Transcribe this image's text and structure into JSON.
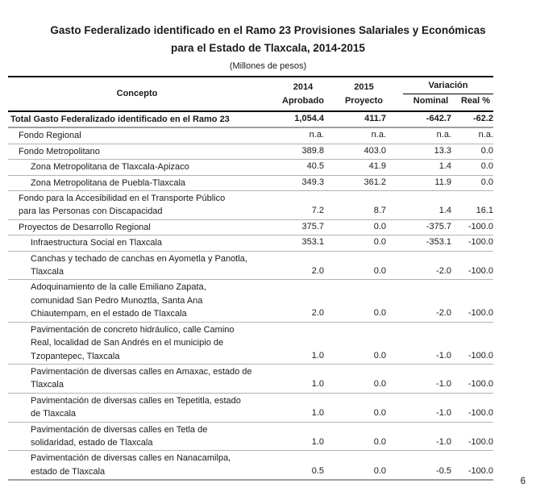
{
  "doc": {
    "title_line1": "Gasto Federalizado identificado en el Ramo 23 Provisiones Salariales y Económicas",
    "title_line2": "para el Estado de Tlaxcala, 2014-2015",
    "subtitle": "(Millones de pesos)",
    "page_number": "6"
  },
  "table": {
    "headers": {
      "concept": "Concepto",
      "y2014_line1": "2014",
      "y2014_line2": "Aprobado",
      "y2015_line1": "2015",
      "y2015_line2": "Proyecto",
      "variation": "Variación",
      "nominal": "Nominal",
      "real": "Real %"
    },
    "rows": [
      {
        "concept_lines": [
          "Total Gasto Federalizado identificado en el Ramo 23"
        ],
        "indent": 0,
        "bold": true,
        "total": true,
        "v2014": "1,054.4",
        "v2015": "411.7",
        "nominal": "-642.7",
        "real": "-62.2"
      },
      {
        "concept_lines": [
          "Fondo Regional"
        ],
        "indent": 1,
        "bold": false,
        "total": false,
        "v2014": "n.a.",
        "v2015": "n.a.",
        "nominal": "n.a.",
        "real": "n.a."
      },
      {
        "concept_lines": [
          "Fondo Metropolitano"
        ],
        "indent": 1,
        "bold": false,
        "total": false,
        "v2014": "389.8",
        "v2015": "403.0",
        "nominal": "13.3",
        "real": "0.0"
      },
      {
        "concept_lines": [
          "Zona Metropolitana de Tlaxcala-Apizaco"
        ],
        "indent": 2,
        "bold": false,
        "total": false,
        "v2014": "40.5",
        "v2015": "41.9",
        "nominal": "1.4",
        "real": "0.0"
      },
      {
        "concept_lines": [
          "Zona Metropolitana de Puebla-Tlaxcala"
        ],
        "indent": 2,
        "bold": false,
        "total": false,
        "v2014": "349.3",
        "v2015": "361.2",
        "nominal": "11.9",
        "real": "0.0"
      },
      {
        "concept_lines": [
          "Fondo para la Accesibilidad en el Transporte Público",
          "para las Personas con Discapacidad"
        ],
        "indent": 1,
        "bold": false,
        "total": false,
        "v2014": "7.2",
        "v2015": "8.7",
        "nominal": "1.4",
        "real": "16.1"
      },
      {
        "concept_lines": [
          "Proyectos de Desarrollo Regional"
        ],
        "indent": 1,
        "bold": false,
        "total": false,
        "v2014": "375.7",
        "v2015": "0.0",
        "nominal": "-375.7",
        "real": "-100.0"
      },
      {
        "concept_lines": [
          "Infraestructura Social en Tlaxcala"
        ],
        "indent": 2,
        "bold": false,
        "total": false,
        "v2014": "353.1",
        "v2015": "0.0",
        "nominal": "-353.1",
        "real": "-100.0"
      },
      {
        "concept_lines": [
          "Canchas y techado de canchas en Ayometla y Panotla,",
          "Tlaxcala"
        ],
        "indent": 2,
        "bold": false,
        "total": false,
        "v2014": "2.0",
        "v2015": "0.0",
        "nominal": "-2.0",
        "real": "-100.0"
      },
      {
        "concept_lines": [
          "Adoquinamiento de la calle Emiliano Zapata,",
          "comunidad San Pedro Munoztla, Santa Ana",
          "Chiautempam, en el estado de Tlaxcala"
        ],
        "indent": 2,
        "bold": false,
        "total": false,
        "v2014": "2.0",
        "v2015": "0.0",
        "nominal": "-2.0",
        "real": "-100.0"
      },
      {
        "concept_lines": [
          "Pavimentación de concreto hidráulico, calle Camino",
          "Real, localidad de San Andrés en el municipio de",
          "Tzopantepec, Tlaxcala"
        ],
        "indent": 2,
        "bold": false,
        "total": false,
        "v2014": "1.0",
        "v2015": "0.0",
        "nominal": "-1.0",
        "real": "-100.0"
      },
      {
        "concept_lines": [
          "Pavimentación de diversas calles en Amaxac, estado de",
          "Tlaxcala"
        ],
        "indent": 2,
        "bold": false,
        "total": false,
        "v2014": "1.0",
        "v2015": "0.0",
        "nominal": "-1.0",
        "real": "-100.0"
      },
      {
        "concept_lines": [
          "Pavimentación de diversas calles en Tepetitla, estado",
          "de Tlaxcala"
        ],
        "indent": 2,
        "bold": false,
        "total": false,
        "v2014": "1.0",
        "v2015": "0.0",
        "nominal": "-1.0",
        "real": "-100.0"
      },
      {
        "concept_lines": [
          "Pavimentación de diversas calles en Tetla de",
          "solidaridad, estado de Tlaxcala"
        ],
        "indent": 2,
        "bold": false,
        "total": false,
        "v2014": "1.0",
        "v2015": "0.0",
        "nominal": "-1.0",
        "real": "-100.0"
      },
      {
        "concept_lines": [
          "Pavimentación de diversas calles en Nanacamilpa,",
          "estado de Tlaxcala"
        ],
        "indent": 2,
        "bold": false,
        "total": false,
        "v2014": "0.5",
        "v2015": "0.0",
        "nominal": "-0.5",
        "real": "-100.0"
      }
    ]
  }
}
